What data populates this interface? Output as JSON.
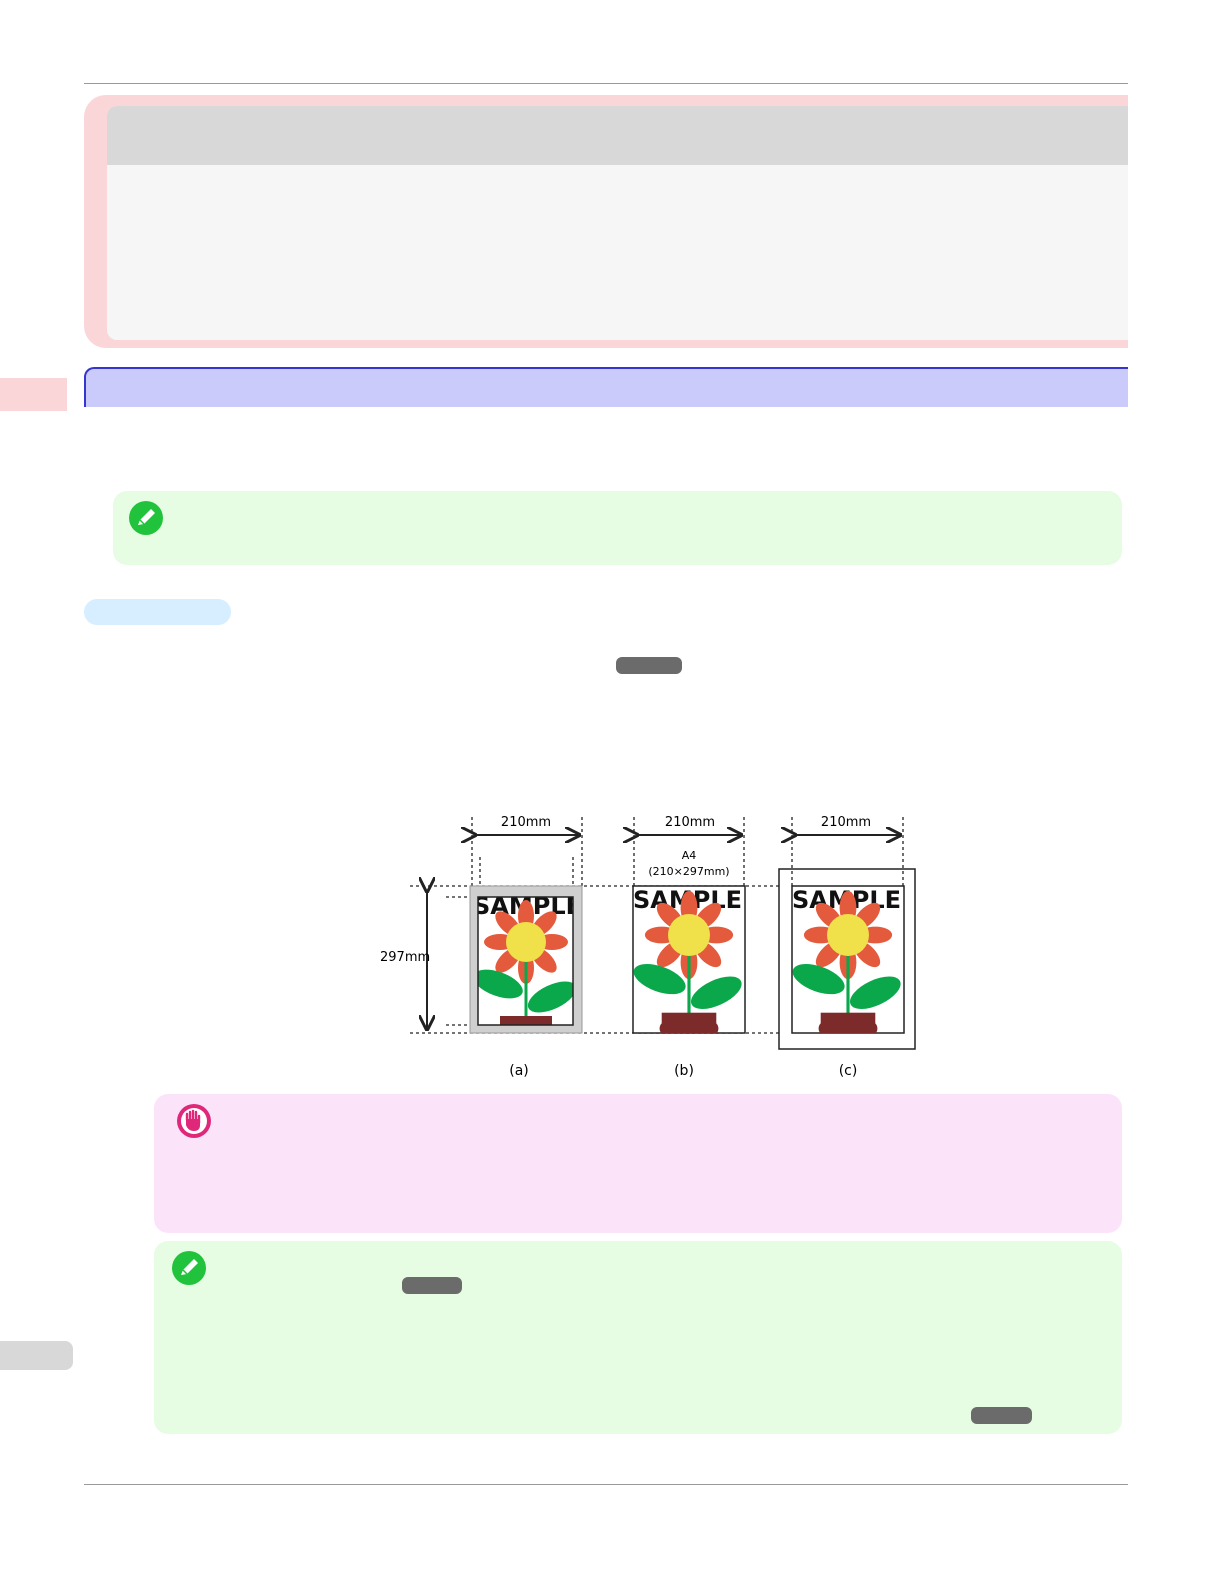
{
  "figure": {
    "width_label": "210mm",
    "height_label": "297mm",
    "paper_label": "A4",
    "paper_size_label": "(210×297mm)",
    "sample_text": "SAMPLE",
    "captions": [
      "(a)",
      "(b)",
      "(c)"
    ]
  },
  "colors": {
    "header_frame": "#fbd6d9",
    "section_bar": "#cbcbfb",
    "section_border": "#3535d0",
    "note_bg": "#e6fde3",
    "important_bg": "#fbe4fa",
    "petal": "#e35a3c",
    "center": "#f0e04a",
    "leaf": "#0aa84b",
    "pot": "#7d2a2a"
  },
  "icons": {
    "note": "pencil-note-icon",
    "important": "hand-stop-icon"
  }
}
